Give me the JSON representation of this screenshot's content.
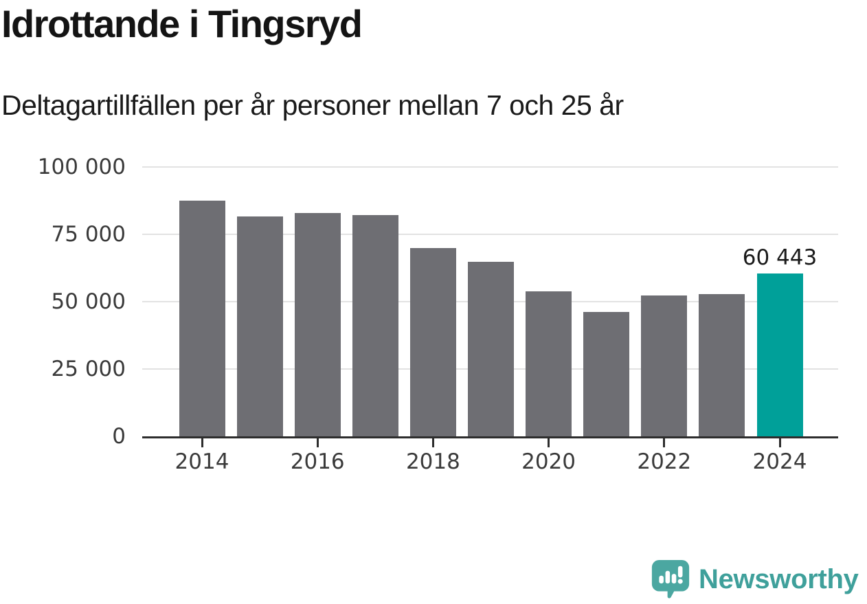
{
  "chart_data": {
    "type": "bar",
    "title": "Idrottande i Tingsryd",
    "subtitle": "Deltagartillfällen per år personer mellan 7 och 25 år",
    "categories": [
      "2014",
      "2015",
      "2016",
      "2017",
      "2018",
      "2019",
      "2020",
      "2021",
      "2022",
      "2023",
      "2024"
    ],
    "values": [
      87400,
      81600,
      82800,
      82100,
      69900,
      64800,
      53800,
      46300,
      52400,
      52700,
      60443
    ],
    "highlight_index": 10,
    "annotation": {
      "text": "60 443",
      "bar_index": 10
    },
    "xticks": [
      "2014",
      "2016",
      "2018",
      "2020",
      "2022",
      "2024"
    ],
    "yticks": [
      {
        "label": "0",
        "value": 0
      },
      {
        "label": "25 000",
        "value": 25000
      },
      {
        "label": "50 000",
        "value": 50000
      },
      {
        "label": "75 000",
        "value": 75000
      },
      {
        "label": "100 000",
        "value": 100000
      }
    ],
    "ylim": [
      0,
      100000
    ],
    "grid": "horizontal",
    "legend": "none",
    "bar_color": "#6E6E73",
    "highlight_color": "#00A099",
    "grid_color": "#E2E2E2",
    "axis_color": "#2D2D2D",
    "label_color": "#3A3A3A",
    "annotation_color": "#1A1A1A",
    "title_color": "#141414",
    "subtitle_color": "#1A1A1A"
  },
  "footer": {
    "logo_text": "Newsworthy",
    "logo_icon": "speech-bubble-bar-chart-exclamation",
    "logo_color": "#4BA7A1",
    "logo_text_color": "#3FA09B"
  }
}
